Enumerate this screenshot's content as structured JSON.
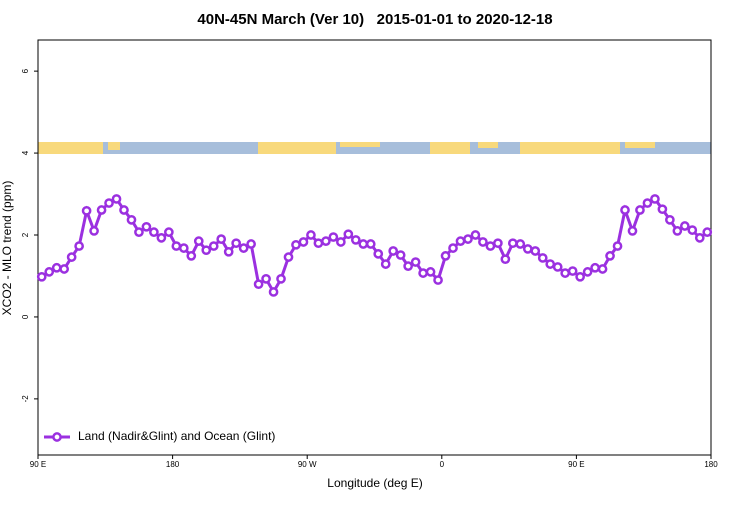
{
  "chart_data": {
    "type": "line",
    "title": "40N-45N March (Ver 10)   2015-01-01 to 2020-12-18",
    "x_label": "Longitude (deg E)",
    "y_label": "XCO2 - MLO trend (ppm)",
    "xlim": [
      90,
      540
    ],
    "ylim": [
      -3.37,
      6.76
    ],
    "xticks": [
      {
        "value": 90,
        "label": "90 E"
      },
      180,
      {
        "value": 270,
        "label": "90 W"
      },
      {
        "value": 360,
        "label": "0"
      },
      {
        "value": 450,
        "label": "90 E"
      },
      {
        "value": 540,
        "label": "180"
      }
    ],
    "yticks": [
      -2,
      0,
      2,
      4,
      6
    ],
    "legend": "bottomleft",
    "x": [
      92.5,
      97.5,
      102.5,
      107.5,
      112.5,
      117.5,
      122.5,
      127.5,
      132.5,
      137.5,
      142.5,
      147.5,
      152.5,
      157.5,
      162.5,
      167.5,
      172.5,
      177.5,
      182.5,
      187.5,
      192.5,
      197.5,
      202.5,
      207.5,
      212.5,
      217.5,
      222.5,
      227.5,
      232.5,
      237.5,
      242.5,
      247.5,
      252.5,
      257.5,
      262.5,
      267.5,
      272.5,
      277.5,
      282.5,
      287.5,
      292.5,
      297.5,
      302.5,
      307.5,
      312.5,
      317.5,
      322.5,
      327.5,
      332.5,
      337.5,
      342.5,
      347.5,
      352.5,
      357.5,
      362.5,
      367.5,
      372.5,
      377.5,
      382.5,
      387.5,
      392.5,
      397.5,
      402.5,
      407.5,
      412.5,
      417.5,
      422.5,
      427.5,
      432.5,
      437.5,
      442.5,
      447.5,
      452.5,
      457.5,
      462.5,
      467.5,
      472.5,
      477.5,
      482.5,
      487.5,
      492.5,
      497.5,
      502.5,
      507.5,
      512.5,
      517.5,
      522.5,
      527.5,
      532.5,
      537.5
    ],
    "series": [
      {
        "name": "Land (Nadir&Glint) and Ocean (Glint)",
        "color": "#9b30e0",
        "values": [
          0.98,
          1.1,
          1.2,
          1.17,
          1.46,
          1.73,
          2.59,
          2.1,
          2.61,
          2.78,
          2.88,
          2.61,
          2.37,
          2.07,
          2.2,
          2.07,
          1.93,
          2.07,
          1.73,
          1.68,
          1.49,
          1.85,
          1.63,
          1.73,
          1.9,
          1.59,
          1.8,
          1.68,
          1.78,
          0.8,
          0.93,
          0.61,
          0.93,
          1.46,
          1.76,
          1.83,
          2.0,
          1.8,
          1.85,
          1.95,
          1.83,
          2.02,
          1.88,
          1.78,
          1.78,
          1.54,
          1.29,
          1.61,
          1.51,
          1.24,
          1.34,
          1.07,
          1.1,
          0.9,
          1.49,
          1.68,
          1.85,
          1.9,
          2.0,
          1.83,
          1.73,
          1.8,
          1.41,
          1.8,
          1.78,
          1.66,
          1.61,
          1.44,
          1.29,
          1.22,
          1.07,
          1.12,
          0.98,
          1.1,
          1.2,
          1.17,
          1.49,
          1.73,
          2.61,
          2.1,
          2.61,
          2.78,
          2.88,
          2.63,
          2.37,
          2.1,
          2.22,
          2.12,
          1.93,
          2.07
        ]
      }
    ]
  }
}
